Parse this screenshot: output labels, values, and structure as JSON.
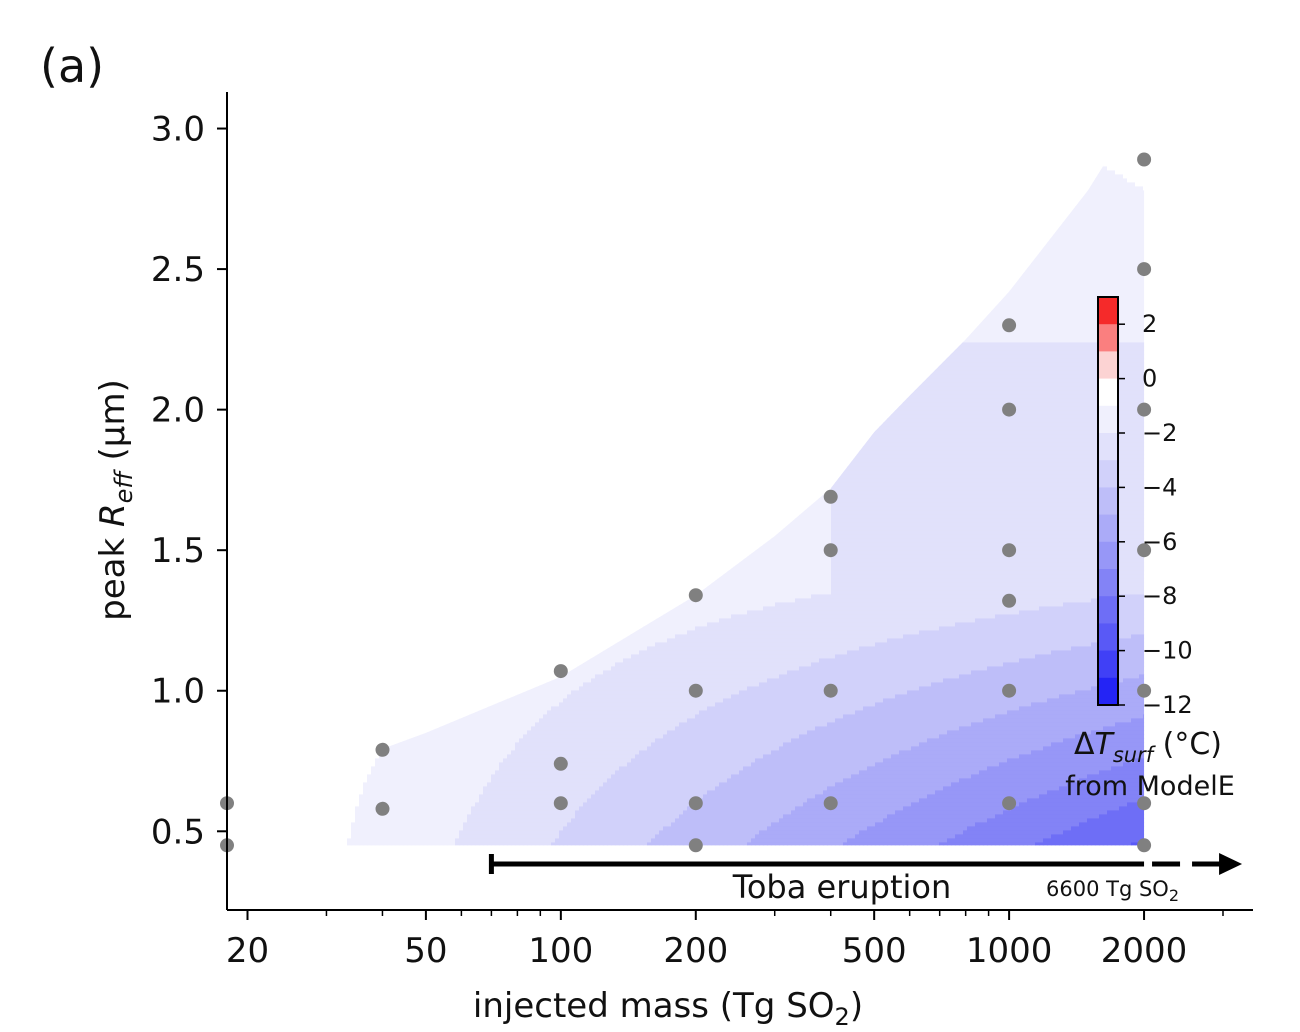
{
  "panel_label": "(a)",
  "chart_data": {
    "type": "contour",
    "xlabel": "injected mass (Tg SO",
    "xlabel_sub": "2",
    "xlabel_end": ")",
    "ylabel_pre": "peak ",
    "ylabel_var": "R",
    "ylabel_sub": "eff",
    "ylabel_post": " (μm)",
    "x_scale": "log",
    "xlim": [
      18,
      3500
    ],
    "ylim": [
      0.22,
      3.13
    ],
    "x_ticks": [
      20,
      50,
      100,
      200,
      500,
      1000,
      2000
    ],
    "x_tick_labels": [
      "20",
      "50",
      "100",
      "200",
      "500",
      "1000",
      "2000"
    ],
    "y_ticks": [
      0.5,
      1.0,
      1.5,
      2.0,
      2.5,
      3.0
    ],
    "y_tick_labels": [
      "0.5",
      "1.0",
      "1.5",
      "2.0",
      "2.5",
      "3.0"
    ],
    "points": [
      {
        "x": 18,
        "y": 0.6
      },
      {
        "x": 18,
        "y": 0.45
      },
      {
        "x": 40,
        "y": 0.79
      },
      {
        "x": 40,
        "y": 0.58
      },
      {
        "x": 100,
        "y": 1.07
      },
      {
        "x": 100,
        "y": 0.74
      },
      {
        "x": 100,
        "y": 0.6
      },
      {
        "x": 200,
        "y": 1.34
      },
      {
        "x": 200,
        "y": 1.0
      },
      {
        "x": 200,
        "y": 0.6
      },
      {
        "x": 200,
        "y": 0.45
      },
      {
        "x": 400,
        "y": 1.69
      },
      {
        "x": 400,
        "y": 1.5
      },
      {
        "x": 400,
        "y": 1.0
      },
      {
        "x": 400,
        "y": 0.6
      },
      {
        "x": 1000,
        "y": 2.3
      },
      {
        "x": 1000,
        "y": 2.0
      },
      {
        "x": 1000,
        "y": 1.5
      },
      {
        "x": 1000,
        "y": 1.32
      },
      {
        "x": 1000,
        "y": 1.0
      },
      {
        "x": 1000,
        "y": 0.6
      },
      {
        "x": 2000,
        "y": 2.89
      },
      {
        "x": 2000,
        "y": 2.5
      },
      {
        "x": 2000,
        "y": 2.0
      },
      {
        "x": 2000,
        "y": 1.5
      },
      {
        "x": 2000,
        "y": 1.0
      },
      {
        "x": 2000,
        "y": 0.6
      },
      {
        "x": 2000,
        "y": 0.45
      }
    ],
    "annotation": {
      "label": "Toba eruption",
      "range_start": 70,
      "range_end_label": "6600 Tg SO",
      "range_end_sub": "2"
    },
    "colorbar": {
      "min": -12,
      "max": 3,
      "ticks": [
        2,
        0,
        -2,
        -4,
        -6,
        -8,
        -10,
        -12
      ],
      "tick_labels": [
        "2",
        "0",
        "−2",
        "−4",
        "−6",
        "−8",
        "−10",
        "−12"
      ],
      "title_pre": "Δ",
      "title_var": "T",
      "title_sub": "surf",
      "title_post": " (°C)",
      "subtitle": "from ModelE",
      "levels": [
        {
          "lo": 2,
          "hi": 3,
          "color": "#f52a2a"
        },
        {
          "lo": 1,
          "hi": 2,
          "color": "#fa7f7f"
        },
        {
          "lo": 0,
          "hi": 1,
          "color": "#fcd3d3"
        },
        {
          "lo": -1,
          "hi": 0,
          "color": "#ffffff"
        },
        {
          "lo": -2,
          "hi": -1,
          "color": "#f0f0fd"
        },
        {
          "lo": -3,
          "hi": -2,
          "color": "#e1e1fb"
        },
        {
          "lo": -4,
          "hi": -3,
          "color": "#d1d1fa"
        },
        {
          "lo": -5,
          "hi": -4,
          "color": "#bebef9"
        },
        {
          "lo": -6,
          "hi": -5,
          "color": "#ababf8"
        },
        {
          "lo": -7,
          "hi": -6,
          "color": "#9797f7"
        },
        {
          "lo": -8,
          "hi": -7,
          "color": "#8383f6"
        },
        {
          "lo": -9,
          "hi": -8,
          "color": "#6e6ef6"
        },
        {
          "lo": -10,
          "hi": -9,
          "color": "#5959f6"
        },
        {
          "lo": -11,
          "hi": -10,
          "color": "#4040f6"
        },
        {
          "lo": -12,
          "hi": -11,
          "color": "#2424f5"
        }
      ]
    },
    "colors": {
      "point": "#808080",
      "axis": "#000000",
      "red_edge": "#c40000"
    }
  }
}
